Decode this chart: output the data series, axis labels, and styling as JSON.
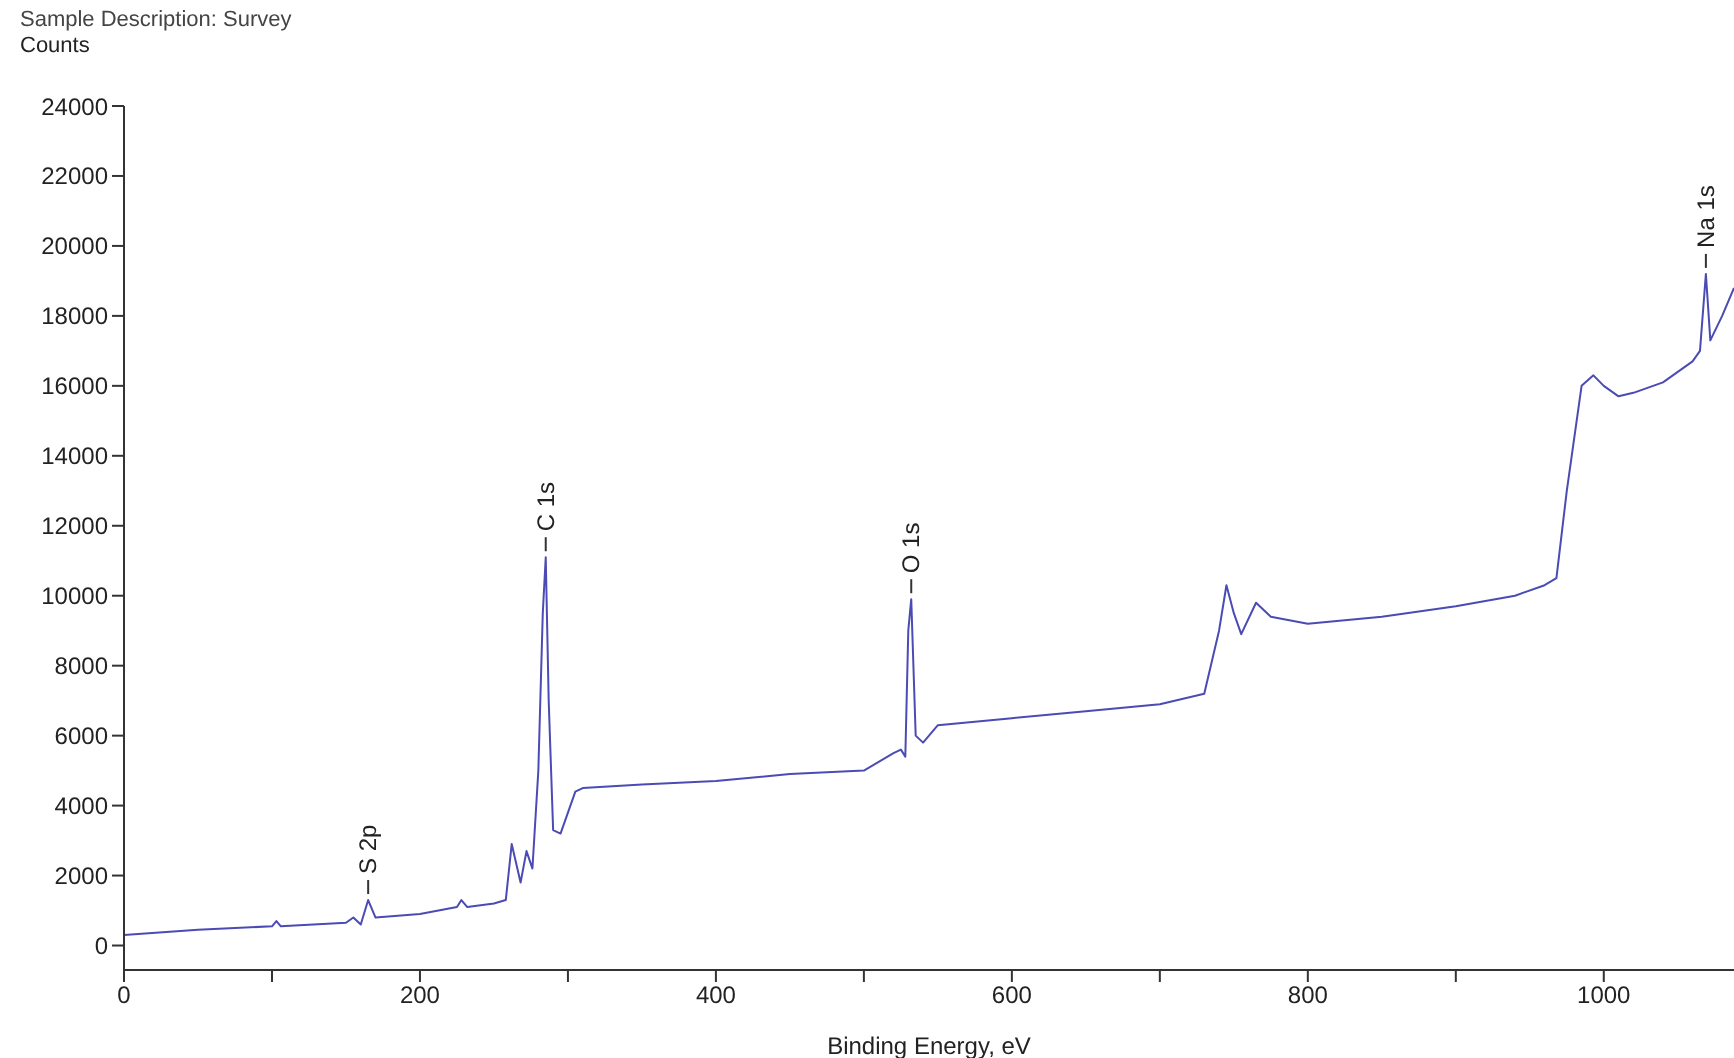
{
  "chart_data": {
    "type": "line",
    "title": "Sample Description: Survey",
    "xlabel": "Binding Energy, eV",
    "ylabel": "Counts",
    "x": [
      0,
      50,
      100,
      103,
      106,
      150,
      155,
      160,
      165,
      170,
      200,
      225,
      228,
      232,
      250,
      258,
      262,
      268,
      272,
      276,
      280,
      283,
      285,
      287,
      290,
      295,
      300,
      305,
      310,
      350,
      400,
      450,
      500,
      520,
      525,
      528,
      530,
      532,
      535,
      540,
      550,
      600,
      650,
      700,
      730,
      740,
      745,
      750,
      755,
      765,
      775,
      800,
      850,
      900,
      940,
      960,
      968,
      975,
      985,
      993,
      1000,
      1010,
      1020,
      1040,
      1060,
      1065,
      1069,
      1072,
      1080,
      1088
    ],
    "series": [
      {
        "color": "#4b4bb4",
        "values": [
          300,
          450,
          550,
          700,
          550,
          650,
          800,
          600,
          1300,
          800,
          900,
          1100,
          1300,
          1100,
          1200,
          1300,
          2900,
          1800,
          2700,
          2200,
          5000,
          9500,
          11100,
          7000,
          3300,
          3200,
          3800,
          4400,
          4500,
          4600,
          4700,
          4900,
          5000,
          5500,
          5600,
          5400,
          9000,
          9900,
          6000,
          5800,
          6300,
          6500,
          6700,
          6900,
          7200,
          9000,
          10300,
          9500,
          8900,
          9800,
          9400,
          9200,
          9400,
          9700,
          10000,
          10300,
          10500,
          13000,
          16000,
          16300,
          16000,
          15700,
          15800,
          16100,
          16700,
          17000,
          19200,
          17300,
          18000,
          18800
        ]
      }
    ],
    "annotations": [
      {
        "text": "S 2p",
        "x": 165,
        "y": 1300
      },
      {
        "text": "C 1s",
        "x": 285,
        "y": 11100
      },
      {
        "text": "O 1s",
        "x": 532,
        "y": 9900
      },
      {
        "text": "Na 1s",
        "x": 1069,
        "y": 19200
      }
    ],
    "xlim": [
      0,
      1088
    ],
    "xticks": [
      0,
      {
        "value": 100,
        "label": null
      },
      200,
      {
        "value": 300,
        "label": null
      },
      400,
      {
        "value": 500,
        "label": null
      },
      600,
      {
        "value": 700,
        "label": null
      },
      800,
      {
        "value": 900,
        "label": null
      },
      1000
    ],
    "ylim": [
      -700,
      24000
    ],
    "yticks": [
      0,
      2000,
      4000,
      6000,
      8000,
      10000,
      12000,
      14000,
      16000,
      18000,
      20000,
      22000,
      24000
    ],
    "grid": false,
    "legend": false,
    "marker": "none",
    "line_style": "solid"
  }
}
